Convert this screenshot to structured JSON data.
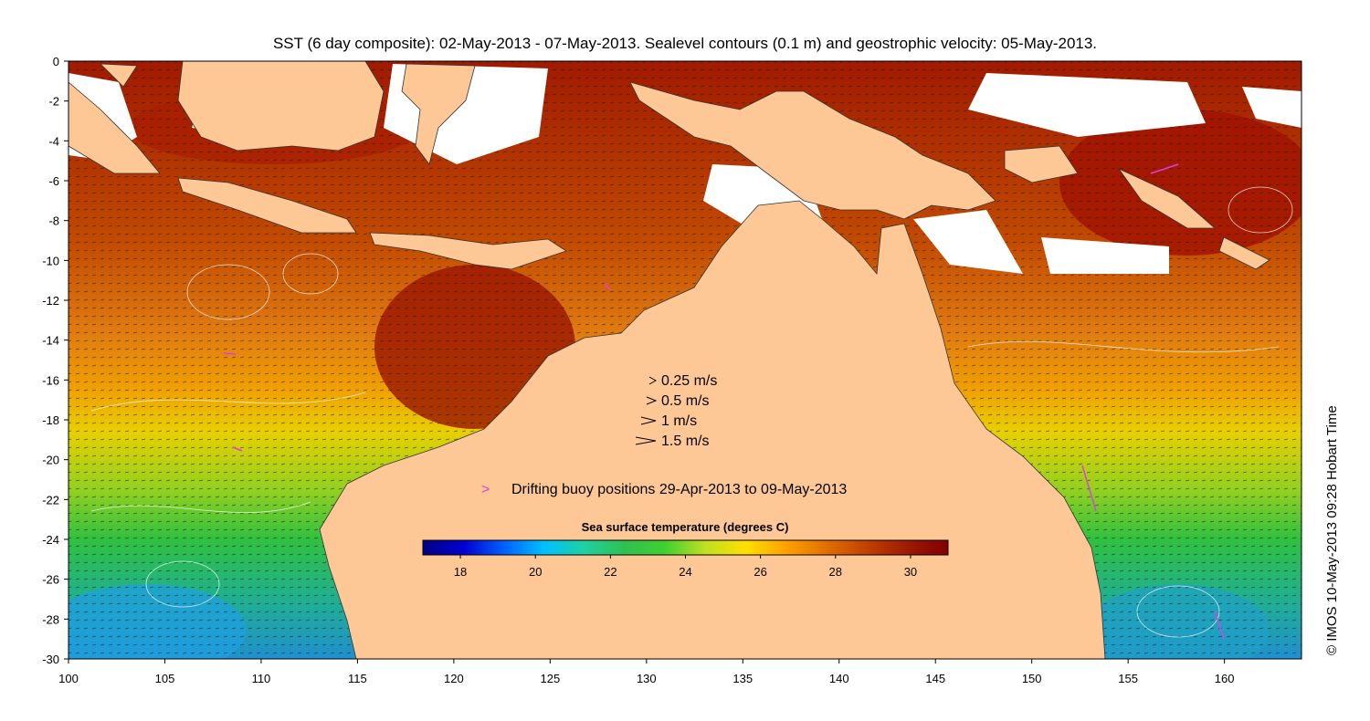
{
  "title": "SST (6 day composite): 02-May-2013 - 07-May-2013. Sealevel contours (0.1 m) and geostrophic velocity: 05-May-2013.",
  "credit": "© IMOS 10-May-2013 09:28 Hobart Time",
  "map": {
    "lon_range": [
      100,
      164
    ],
    "lat_range": [
      -30,
      0
    ],
    "x_ticks": [
      "100",
      "105",
      "110",
      "115",
      "120",
      "125",
      "130",
      "135",
      "140",
      "145",
      "150",
      "155",
      "160"
    ],
    "y_ticks": [
      "0",
      "-2",
      "-4",
      "-6",
      "-8",
      "-10",
      "-12",
      "-14",
      "-16",
      "-18",
      "-20",
      "-22",
      "-24",
      "-26",
      "-28",
      "-30"
    ],
    "land_color": "#fdc896"
  },
  "velocity_legend": [
    {
      "label": "0.25 m/s",
      "speed": 0.25
    },
    {
      "label": "0.5 m/s",
      "speed": 0.5
    },
    {
      "label": "1 m/s",
      "speed": 1
    },
    {
      "label": "1.5 m/s",
      "speed": 1.5
    }
  ],
  "buoy_legend": {
    "label": "Drifting buoy positions 29-Apr-2013 to 09-May-2013",
    "color": "#e040e0"
  },
  "colorbar": {
    "title": "Sea surface temperature (degrees C)",
    "range": [
      17,
      31
    ],
    "ticks": [
      "18",
      "20",
      "22",
      "24",
      "26",
      "28",
      "30"
    ],
    "colors": [
      "#00007f",
      "#0000d0",
      "#0060ff",
      "#00c0ff",
      "#20d0a0",
      "#30c050",
      "#40d030",
      "#c0e020",
      "#ffe000",
      "#ffa000",
      "#e07000",
      "#c04000",
      "#9e1a00",
      "#800000"
    ]
  }
}
